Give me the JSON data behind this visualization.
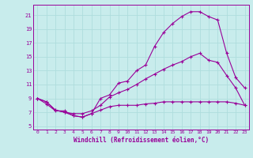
{
  "xlabel": "Windchill (Refroidissement éolien,°C)",
  "background_color": "#c8ecec",
  "grid_color": "#aedddd",
  "line_color": "#990099",
  "xlim": [
    -0.5,
    23.5
  ],
  "ylim": [
    4.5,
    22.5
  ],
  "xticks": [
    0,
    1,
    2,
    3,
    4,
    5,
    6,
    7,
    8,
    9,
    10,
    11,
    12,
    13,
    14,
    15,
    16,
    17,
    18,
    19,
    20,
    21,
    22,
    23
  ],
  "yticks": [
    5,
    7,
    9,
    11,
    13,
    15,
    17,
    19,
    21
  ],
  "line1_x": [
    0,
    1,
    2,
    3,
    4,
    5,
    6,
    7,
    8,
    9,
    10,
    11,
    12,
    13,
    14,
    15,
    16,
    17,
    18,
    19,
    20,
    21,
    22,
    23
  ],
  "line1_y": [
    9.0,
    8.2,
    7.2,
    7.2,
    6.5,
    6.3,
    6.8,
    9.0,
    9.5,
    11.2,
    11.5,
    13.0,
    13.8,
    16.5,
    18.5,
    19.8,
    20.8,
    21.5,
    21.5,
    20.8,
    20.3,
    15.5,
    12.0,
    10.5
  ],
  "line2_x": [
    0,
    1,
    2,
    3,
    4,
    5,
    6,
    7,
    8,
    9,
    10,
    11,
    12,
    13,
    14,
    15,
    16,
    17,
    18,
    19,
    20,
    21,
    22,
    23
  ],
  "line2_y": [
    9.0,
    8.5,
    7.3,
    7.0,
    6.8,
    6.8,
    7.2,
    8.0,
    9.2,
    9.8,
    10.3,
    11.0,
    11.8,
    12.5,
    13.2,
    13.8,
    14.3,
    15.0,
    15.5,
    14.5,
    14.2,
    12.3,
    10.5,
    8.0
  ],
  "line3_x": [
    0,
    1,
    2,
    3,
    4,
    5,
    6,
    7,
    8,
    9,
    10,
    11,
    12,
    13,
    14,
    15,
    16,
    17,
    18,
    19,
    20,
    21,
    22,
    23
  ],
  "line3_y": [
    9.0,
    8.5,
    7.3,
    7.0,
    6.5,
    6.3,
    6.8,
    7.3,
    7.8,
    8.0,
    8.0,
    8.0,
    8.2,
    8.3,
    8.5,
    8.5,
    8.5,
    8.5,
    8.5,
    8.5,
    8.5,
    8.5,
    8.3,
    8.0
  ]
}
